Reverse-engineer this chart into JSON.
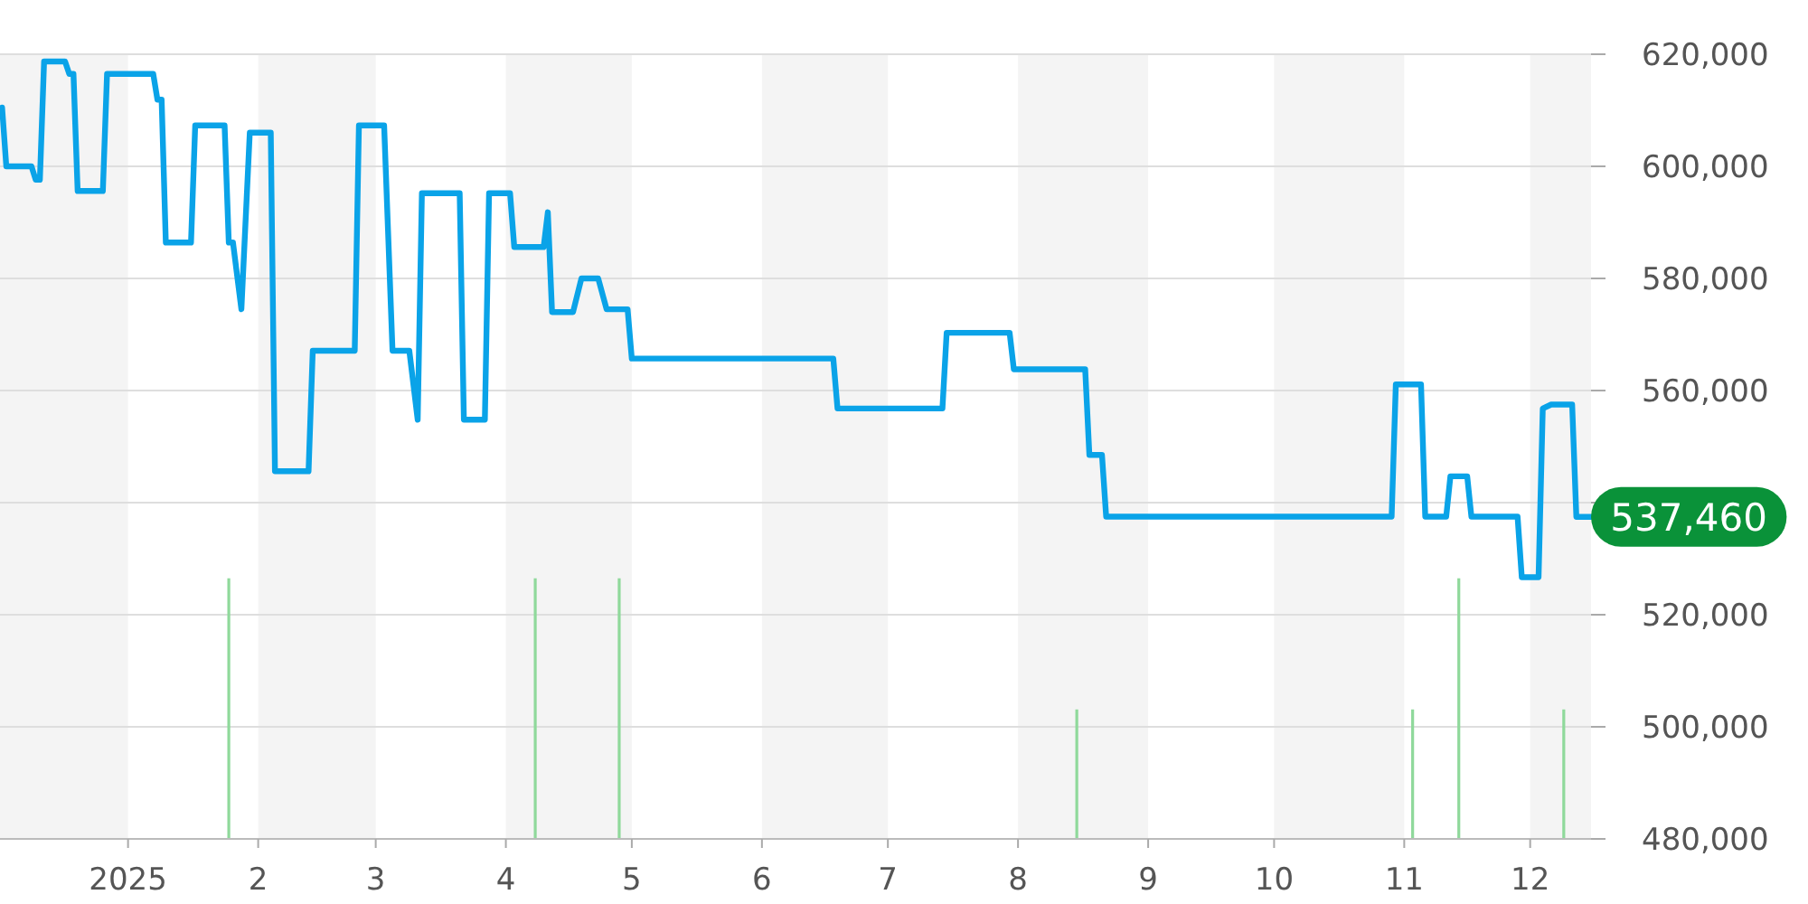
{
  "chart_data": {
    "type": "line",
    "xlim": [
      "2024-12-01T12:00",
      "2025-12-15T12:00"
    ],
    "xticks": [
      {
        "value": "2025-01-01",
        "label": "2025"
      },
      {
        "value": "2025-02-01",
        "label": "2"
      },
      {
        "value": "2025-03-01",
        "label": "3"
      },
      {
        "value": "2025-04-01",
        "label": "4"
      },
      {
        "value": "2025-05-01",
        "label": "5"
      },
      {
        "value": "2025-06-01",
        "label": "6"
      },
      {
        "value": "2025-07-01",
        "label": "7"
      },
      {
        "value": "2025-08-01",
        "label": "8"
      },
      {
        "value": "2025-09-01",
        "label": "9"
      },
      {
        "value": "2025-10-01",
        "label": "10"
      },
      {
        "value": "2025-11-01",
        "label": "11"
      },
      {
        "value": "2025-12-01",
        "label": "12"
      }
    ],
    "ylim": [
      480000,
      620000
    ],
    "yticks": [
      {
        "value": 480000,
        "label": "480,000"
      },
      {
        "value": 500000,
        "label": "500,000"
      },
      {
        "value": 520000,
        "label": "520,000"
      },
      {
        "value": 540000,
        "label": null
      },
      {
        "value": 560000,
        "label": "560,000"
      },
      {
        "value": 580000,
        "label": "580,000"
      },
      {
        "value": 600000,
        "label": "600,000"
      },
      {
        "value": 620000,
        "label": "620,000"
      }
    ],
    "grid": "y",
    "bands": [
      {
        "axis": "x",
        "from": "2024-12-01T12:00",
        "to": "2025-01-01",
        "color": "#f4f4f4"
      },
      {
        "axis": "x",
        "from": "2025-02-01",
        "to": "2025-03-01",
        "color": "#f4f4f4"
      },
      {
        "axis": "x",
        "from": "2025-04-01",
        "to": "2025-05-01",
        "color": "#f4f4f4"
      },
      {
        "axis": "x",
        "from": "2025-06-01",
        "to": "2025-07-01",
        "color": "#f4f4f4"
      },
      {
        "axis": "x",
        "from": "2025-08-01",
        "to": "2025-09-01",
        "color": "#f4f4f4"
      },
      {
        "axis": "x",
        "from": "2025-10-01",
        "to": "2025-11-01",
        "color": "#f4f4f4"
      },
      {
        "axis": "x",
        "from": "2025-12-01",
        "to": "2025-12-15T12:00",
        "color": "#f4f4f4"
      }
    ],
    "series": [
      {
        "type": "bar",
        "color": "#8fd99b",
        "x": [
          "2025-01-25",
          "2025-04-08",
          "2025-04-28",
          "2025-08-15",
          "2025-11-03",
          "2025-11-14",
          "2025-12-09"
        ],
        "values": [
          526500,
          526500,
          526500,
          503100,
          503100,
          526500,
          503100
        ]
      },
      {
        "color": "#0aa3e8",
        "x": [
          "2024-12-02",
          "2024-12-03",
          "2024-12-09",
          "2024-12-10",
          "2024-12-11",
          "2024-12-12",
          "2024-12-17",
          "2024-12-18",
          "2024-12-19",
          "2024-12-20",
          "2024-12-26",
          "2024-12-27",
          "2025-01-07",
          "2025-01-08",
          "2025-01-09",
          "2025-01-10",
          "2025-01-16",
          "2025-01-17",
          "2025-01-24",
          "2025-01-25",
          "2025-01-26",
          "2025-01-28",
          "2025-01-30",
          "2025-02-04",
          "2025-02-05",
          "2025-02-13",
          "2025-02-14",
          "2025-02-24",
          "2025-02-25",
          "2025-03-03",
          "2025-03-05",
          "2025-03-09",
          "2025-03-11",
          "2025-03-12",
          "2025-03-21",
          "2025-03-22",
          "2025-03-27",
          "2025-03-28",
          "2025-04-02",
          "2025-04-03",
          "2025-04-10",
          "2025-04-11",
          "2025-04-12",
          "2025-04-17",
          "2025-04-19",
          "2025-04-23",
          "2025-04-25",
          "2025-04-30",
          "2025-05-01",
          "2025-06-18",
          "2025-06-19",
          "2025-07-14",
          "2025-07-15",
          "2025-07-30",
          "2025-07-31",
          "2025-08-17",
          "2025-08-18",
          "2025-08-21",
          "2025-08-22",
          "2025-10-29",
          "2025-10-30",
          "2025-11-05",
          "2025-11-06",
          "2025-11-11",
          "2025-11-12",
          "2025-11-16",
          "2025-11-17",
          "2025-11-28",
          "2025-11-29",
          "2025-12-03",
          "2025-12-04",
          "2025-12-06",
          "2025-12-11",
          "2025-12-12",
          "2025-12-15T12:00"
        ],
        "values": [
          610500,
          600000,
          600000,
          597600,
          597600,
          618700,
          618700,
          616500,
          616500,
          595600,
          595600,
          616500,
          616500,
          611900,
          611900,
          586400,
          586400,
          607300,
          607300,
          586400,
          586400,
          574500,
          606000,
          606000,
          545600,
          545600,
          567100,
          567100,
          607300,
          607300,
          567100,
          567100,
          554800,
          595200,
          595200,
          554800,
          554800,
          595200,
          595200,
          585600,
          585600,
          591800,
          574000,
          574000,
          580000,
          580000,
          574500,
          574500,
          565700,
          565700,
          556800,
          556800,
          570300,
          570300,
          563800,
          563800,
          548500,
          548500,
          537500,
          537500,
          561100,
          561100,
          537500,
          537500,
          544700,
          544700,
          537500,
          537500,
          526700,
          526700,
          556800,
          557500,
          557500,
          537460,
          537460
        ]
      }
    ],
    "annotations": [
      {
        "text": "537,460",
        "x": "2025-12-15T12:00",
        "y": 537460
      }
    ]
  }
}
